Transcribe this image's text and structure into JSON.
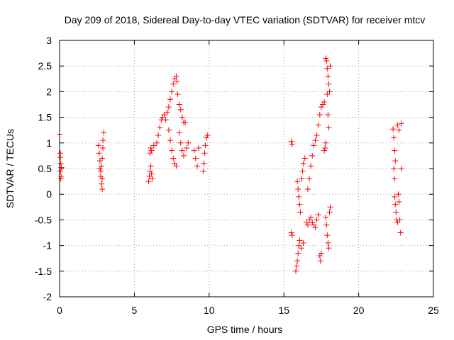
{
  "chart_data": {
    "type": "scatter",
    "title": "Day 209 of 2018, Sidereal Day-to-day VTEC variation (SDTVAR) for receiver mtcv",
    "xlabel": "GPS time / hours",
    "ylabel": "SDTVAR / TECUs",
    "xlim": [
      0,
      25
    ],
    "ylim": [
      -2,
      3
    ],
    "xticks": [
      "0",
      "5",
      "10",
      "15",
      "20",
      "25"
    ],
    "yticks": [
      "-2",
      "-1.5",
      "-1",
      "-0.5",
      "0",
      "0.5",
      "1",
      "1.5",
      "2",
      "2.5",
      "3"
    ],
    "grid": true,
    "marker": "+",
    "marker_color": "#ff0000",
    "series": [
      {
        "name": "SDTVAR",
        "points": [
          [
            0.0,
            1.17
          ],
          [
            0.05,
            0.8
          ],
          [
            0.05,
            0.72
          ],
          [
            0.08,
            0.6
          ],
          [
            0.05,
            0.45
          ],
          [
            0.1,
            0.35
          ],
          [
            0.08,
            0.3
          ],
          [
            0.12,
            0.52
          ],
          [
            2.6,
            0.95
          ],
          [
            2.65,
            0.8
          ],
          [
            2.7,
            0.65
          ],
          [
            2.7,
            0.5
          ],
          [
            2.75,
            0.35
          ],
          [
            2.8,
            0.2
          ],
          [
            2.85,
            0.1
          ],
          [
            2.8,
            0.55
          ],
          [
            2.85,
            0.7
          ],
          [
            2.9,
            0.9
          ],
          [
            2.9,
            1.05
          ],
          [
            2.95,
            1.2
          ],
          [
            2.75,
            0.45
          ],
          [
            2.85,
            0.3
          ],
          [
            5.95,
            0.25
          ],
          [
            6.0,
            0.35
          ],
          [
            6.05,
            0.45
          ],
          [
            6.1,
            0.55
          ],
          [
            6.15,
            0.4
          ],
          [
            6.2,
            0.3
          ],
          [
            6.05,
            0.8
          ],
          [
            6.1,
            0.9
          ],
          [
            6.15,
            0.85
          ],
          [
            6.3,
            0.95
          ],
          [
            6.5,
            1.0
          ],
          [
            6.6,
            1.15
          ],
          [
            6.7,
            1.3
          ],
          [
            6.8,
            1.45
          ],
          [
            6.9,
            1.5
          ],
          [
            7.0,
            1.55
          ],
          [
            7.1,
            1.45
          ],
          [
            7.2,
            1.6
          ],
          [
            7.3,
            1.7
          ],
          [
            7.4,
            1.85
          ],
          [
            7.5,
            2.0
          ],
          [
            7.6,
            2.15
          ],
          [
            7.7,
            2.25
          ],
          [
            7.8,
            2.3
          ],
          [
            7.85,
            2.2
          ],
          [
            7.9,
            1.95
          ],
          [
            7.3,
            1.25
          ],
          [
            7.4,
            1.05
          ],
          [
            7.5,
            0.85
          ],
          [
            7.6,
            0.7
          ],
          [
            7.7,
            0.6
          ],
          [
            7.8,
            0.55
          ],
          [
            8.0,
            1.75
          ],
          [
            8.1,
            1.65
          ],
          [
            8.2,
            1.5
          ],
          [
            8.3,
            1.4
          ],
          [
            8.4,
            1.4
          ],
          [
            8.0,
            1.2
          ],
          [
            8.1,
            1.0
          ],
          [
            8.2,
            0.85
          ],
          [
            8.3,
            0.75
          ],
          [
            8.5,
            0.9
          ],
          [
            8.6,
            1.0
          ],
          [
            9.0,
            0.85
          ],
          [
            9.1,
            0.7
          ],
          [
            9.2,
            0.55
          ],
          [
            9.3,
            0.9
          ],
          [
            9.6,
            0.45
          ],
          [
            9.65,
            0.6
          ],
          [
            9.7,
            0.8
          ],
          [
            9.75,
            0.95
          ],
          [
            9.8,
            1.1
          ],
          [
            9.9,
            1.15
          ],
          [
            15.5,
            1.03
          ],
          [
            15.55,
            0.97
          ],
          [
            15.5,
            -0.75
          ],
          [
            15.55,
            -0.8
          ],
          [
            15.8,
            -1.5
          ],
          [
            15.85,
            -1.4
          ],
          [
            15.9,
            -1.3
          ],
          [
            15.95,
            -1.15
          ],
          [
            16.0,
            -1.0
          ],
          [
            16.05,
            -0.9
          ],
          [
            16.15,
            -1.05
          ],
          [
            16.3,
            -0.95
          ],
          [
            15.9,
            0.25
          ],
          [
            15.95,
            0.1
          ],
          [
            16.0,
            -0.05
          ],
          [
            16.05,
            -0.2
          ],
          [
            16.1,
            -0.35
          ],
          [
            16.2,
            0.3
          ],
          [
            16.25,
            0.45
          ],
          [
            16.3,
            0.6
          ],
          [
            16.4,
            0.7
          ],
          [
            16.5,
            -0.55
          ],
          [
            16.6,
            -0.6
          ],
          [
            16.7,
            -0.5
          ],
          [
            16.8,
            -0.45
          ],
          [
            16.9,
            -0.55
          ],
          [
            17.0,
            -0.6
          ],
          [
            17.1,
            -0.65
          ],
          [
            17.2,
            -0.5
          ],
          [
            17.3,
            -0.4
          ],
          [
            16.6,
            0.1
          ],
          [
            16.7,
            0.3
          ],
          [
            16.8,
            0.55
          ],
          [
            16.9,
            0.75
          ],
          [
            17.0,
            0.95
          ],
          [
            17.1,
            1.05
          ],
          [
            17.2,
            1.15
          ],
          [
            17.3,
            1.35
          ],
          [
            17.4,
            1.55
          ],
          [
            17.5,
            1.7
          ],
          [
            17.6,
            1.75
          ],
          [
            17.7,
            1.8
          ],
          [
            17.4,
            -1.2
          ],
          [
            17.45,
            -1.3
          ],
          [
            17.5,
            -1.15
          ],
          [
            17.7,
            0.85
          ],
          [
            17.75,
            0.9
          ],
          [
            17.8,
            1.0
          ],
          [
            17.8,
            2.65
          ],
          [
            17.85,
            2.6
          ],
          [
            17.9,
            2.45
          ],
          [
            17.95,
            2.3
          ],
          [
            18.0,
            2.15
          ],
          [
            18.05,
            2.0
          ],
          [
            17.9,
            1.95
          ],
          [
            17.95,
            1.55
          ],
          [
            18.0,
            1.3
          ],
          [
            18.1,
            2.5
          ],
          [
            17.8,
            -0.45
          ],
          [
            17.85,
            -0.6
          ],
          [
            17.9,
            -0.8
          ],
          [
            17.95,
            -0.95
          ],
          [
            18.0,
            -1.05
          ],
          [
            18.05,
            -0.35
          ],
          [
            18.1,
            -0.25
          ],
          [
            22.3,
            1.27
          ],
          [
            22.35,
            1.1
          ],
          [
            22.4,
            0.85
          ],
          [
            22.45,
            0.65
          ],
          [
            22.35,
            0.5
          ],
          [
            22.4,
            0.3
          ],
          [
            22.4,
            -0.05
          ],
          [
            22.45,
            -0.2
          ],
          [
            22.5,
            -0.35
          ],
          [
            22.55,
            -0.5
          ],
          [
            22.6,
            -0.55
          ],
          [
            22.65,
            0.0
          ],
          [
            22.7,
            -0.15
          ],
          [
            22.6,
            1.35
          ],
          [
            22.7,
            1.25
          ],
          [
            22.85,
            1.38
          ],
          [
            22.85,
            0.5
          ],
          [
            22.8,
            -0.75
          ],
          [
            22.75,
            -0.5
          ]
        ]
      }
    ]
  }
}
